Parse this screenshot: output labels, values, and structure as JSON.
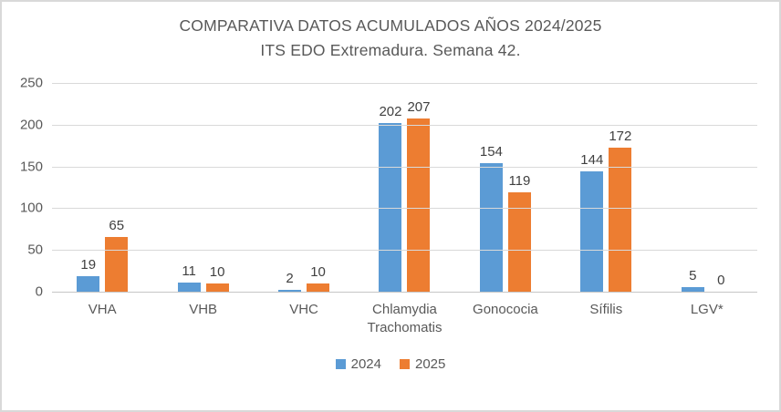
{
  "title": {
    "line1": "COMPARATIVA DATOS ACUMULADOS AÑOS 2024/2025",
    "line2": "ITS EDO Extremadura. Semana 42."
  },
  "chart_data": {
    "type": "bar",
    "title": "COMPARATIVA DATOS ACUMULADOS AÑOS 2024/2025 ITS EDO Extremadura. Semana 42.",
    "categories": [
      "VHA",
      "VHB",
      "VHC",
      "Chlamydia Trachomatis",
      "Gonococia",
      "Sífilis",
      "LGV*"
    ],
    "series": [
      {
        "name": "2024",
        "color": "#5B9BD5",
        "values": [
          19,
          11,
          2,
          202,
          154,
          144,
          5
        ]
      },
      {
        "name": "2025",
        "color": "#ED7D31",
        "values": [
          65,
          10,
          10,
          207,
          119,
          172,
          0
        ]
      }
    ],
    "xlabel": "",
    "ylabel": "",
    "ylim": [
      0,
      250
    ],
    "yticks": [
      0,
      50,
      100,
      150,
      200,
      250
    ],
    "grid": true,
    "data_labels": true,
    "legend_position": "bottom",
    "colors": {
      "gridline": "#d9d9d9",
      "axis_text": "#595959",
      "label_text": "#404040"
    }
  }
}
